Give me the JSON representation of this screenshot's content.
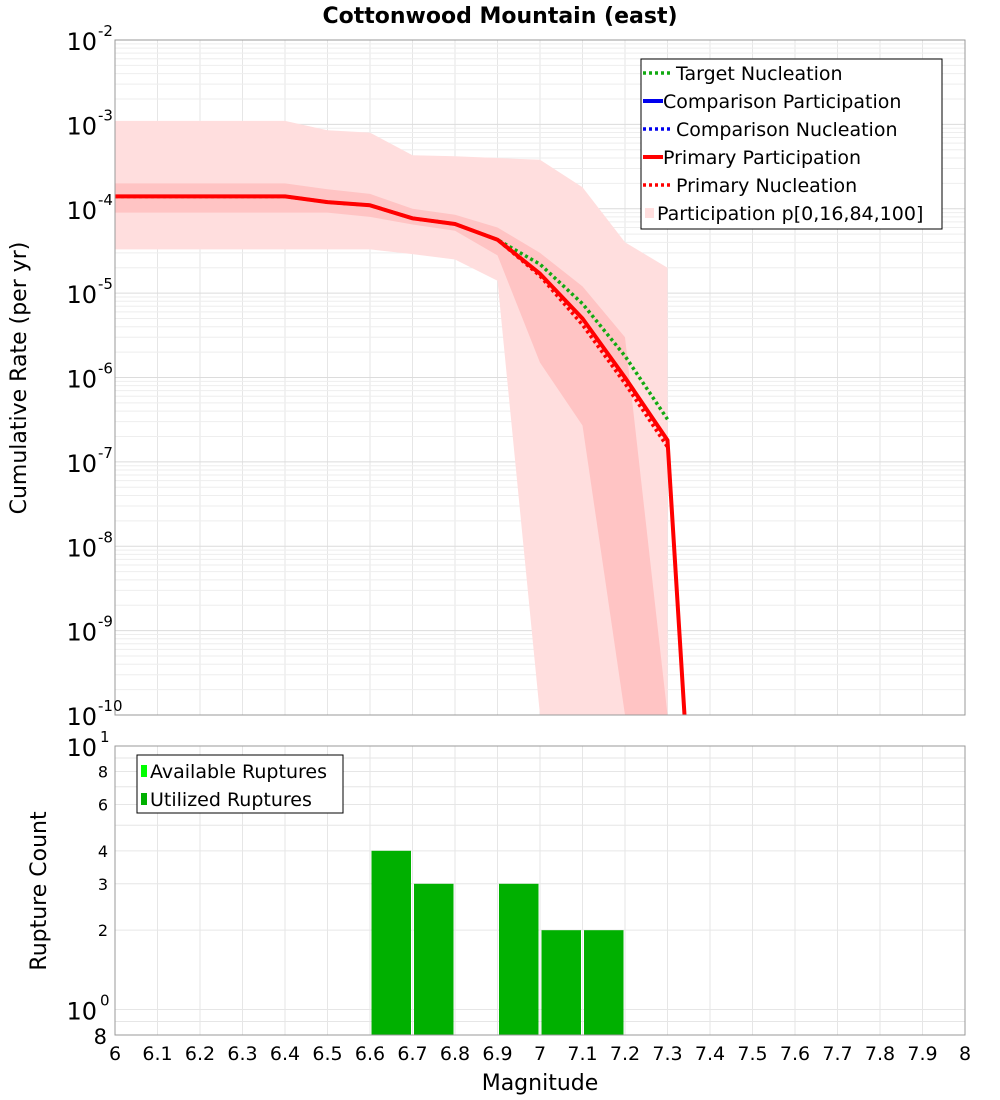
{
  "title": "Cottonwood Mountain (east)",
  "x_axis": {
    "label": "Magnitude",
    "ticks": [
      "6",
      "6.1",
      "6.2",
      "6.3",
      "6.4",
      "6.5",
      "6.6",
      "6.7",
      "6.8",
      "6.9",
      "7",
      "7.1",
      "7.2",
      "7.3",
      "7.4",
      "7.5",
      "7.6",
      "7.7",
      "7.8",
      "7.9",
      "8"
    ]
  },
  "colors": {
    "target": "#11aa11",
    "comparison": "#0000ee",
    "primary": "#ff0000",
    "band_outer": "#ffdede",
    "band_inner": "#ffc4c4",
    "available": "#00ff00",
    "utilized": "#00b000"
  },
  "chart_data": [
    {
      "type": "line",
      "title": "Cottonwood Mountain (east)",
      "ylabel": "Cumulative Rate (per yr)",
      "xlim": [
        6,
        8
      ],
      "ylim": [
        1e-10,
        0.01
      ],
      "yscale": "log",
      "y_ticks": [
        {
          "base": "10",
          "exp": "-2"
        },
        {
          "base": "10",
          "exp": "-3"
        },
        {
          "base": "10",
          "exp": "-4"
        },
        {
          "base": "10",
          "exp": "-5"
        },
        {
          "base": "10",
          "exp": "-6"
        },
        {
          "base": "10",
          "exp": "-7"
        },
        {
          "base": "10",
          "exp": "-8"
        },
        {
          "base": "10",
          "exp": "-9"
        },
        {
          "base": "10",
          "exp": "-10"
        }
      ],
      "grid": true,
      "legend_position": "top-right",
      "series": [
        {
          "name": "Target Nucleation",
          "style": "dotted",
          "color": "#11aa11",
          "x": [
            6.0,
            6.4,
            6.5,
            6.6,
            6.7,
            6.8,
            6.9,
            7.0,
            7.1,
            7.2,
            7.3
          ],
          "y": [
            0.00014,
            0.00014,
            0.00012,
            0.00011,
            7.7e-05,
            6.6e-05,
            4.3e-05,
            2.2e-05,
            7.5e-06,
            1.8e-06,
            3.2e-07
          ]
        },
        {
          "name": "Comparison Participation",
          "style": "solid",
          "color": "#0000ee",
          "x": [],
          "y": []
        },
        {
          "name": "Comparison Nucleation",
          "style": "dotted",
          "color": "#0000ee",
          "x": [],
          "y": []
        },
        {
          "name": "Primary Participation",
          "style": "solid",
          "color": "#ff0000",
          "x": [
            6.0,
            6.4,
            6.5,
            6.6,
            6.7,
            6.8,
            6.9,
            7.0,
            7.1,
            7.2,
            7.3,
            7.34
          ],
          "y": [
            0.00014,
            0.00014,
            0.00012,
            0.00011,
            7.7e-05,
            6.6e-05,
            4.3e-05,
            1.7e-05,
            5e-06,
            1e-06,
            1.8e-07,
            1e-10
          ]
        },
        {
          "name": "Primary Nucleation",
          "style": "dotted",
          "color": "#ff0000",
          "x": [
            6.0,
            6.4,
            6.5,
            6.6,
            6.7,
            6.8,
            6.9,
            7.0,
            7.1,
            7.2,
            7.3
          ],
          "y": [
            0.00014,
            0.00014,
            0.00012,
            0.00011,
            7.7e-05,
            6.6e-05,
            4.3e-05,
            1.6e-05,
            4.2e-06,
            8.5e-07,
            1.5e-07
          ]
        },
        {
          "name": "Participation p[0,16,84,100]",
          "style": "band",
          "color": "#ffdede",
          "x": [
            6.0,
            6.4,
            6.5,
            6.6,
            6.7,
            6.8,
            6.9,
            7.0,
            7.1,
            7.2,
            7.3
          ],
          "p0": [
            3.3e-05,
            3.3e-05,
            3.3e-05,
            3.3e-05,
            2.9e-05,
            2.5e-05,
            1.4e-05,
            1e-10,
            1e-10,
            1e-10,
            1e-10
          ],
          "p16": [
            9e-05,
            9e-05,
            9e-05,
            8e-05,
            6.5e-05,
            5.5e-05,
            2.8e-05,
            1.5e-06,
            2.7e-07,
            1e-10,
            1e-10
          ],
          "p84": [
            0.0002,
            0.0002,
            0.00017,
            0.00015,
            0.0001,
            8.5e-05,
            6e-05,
            3e-05,
            1.2e-05,
            3e-06,
            1e-10
          ],
          "p100": [
            0.0011,
            0.0011,
            0.00085,
            0.0008,
            0.00043,
            0.00042,
            0.0004,
            0.00038,
            0.00018,
            4e-05,
            2e-05
          ]
        }
      ]
    },
    {
      "type": "bar",
      "ylabel": "Rupture Count",
      "xlim": [
        6,
        8
      ],
      "ylim": [
        0.8,
        10
      ],
      "yscale": "log",
      "y_ticks": [
        "2",
        "3",
        "4",
        "6",
        "8"
      ],
      "y_decade_ticks": [
        {
          "base": "10",
          "exp": "1"
        },
        {
          "base": "10",
          "exp": "0"
        }
      ],
      "y_min_label": "8",
      "grid": true,
      "legend_position": "top-left",
      "series": [
        {
          "name": "Available Ruptures",
          "color": "#00ff00",
          "values": []
        },
        {
          "name": "Utilized Ruptures",
          "color": "#00b000",
          "bins": [
            [
              6.6,
              6.7
            ],
            [
              6.7,
              6.8
            ],
            [
              6.9,
              7.0
            ],
            [
              7.0,
              7.1
            ],
            [
              7.1,
              7.2
            ]
          ],
          "values": [
            4,
            3,
            3,
            2,
            2
          ]
        }
      ]
    }
  ]
}
